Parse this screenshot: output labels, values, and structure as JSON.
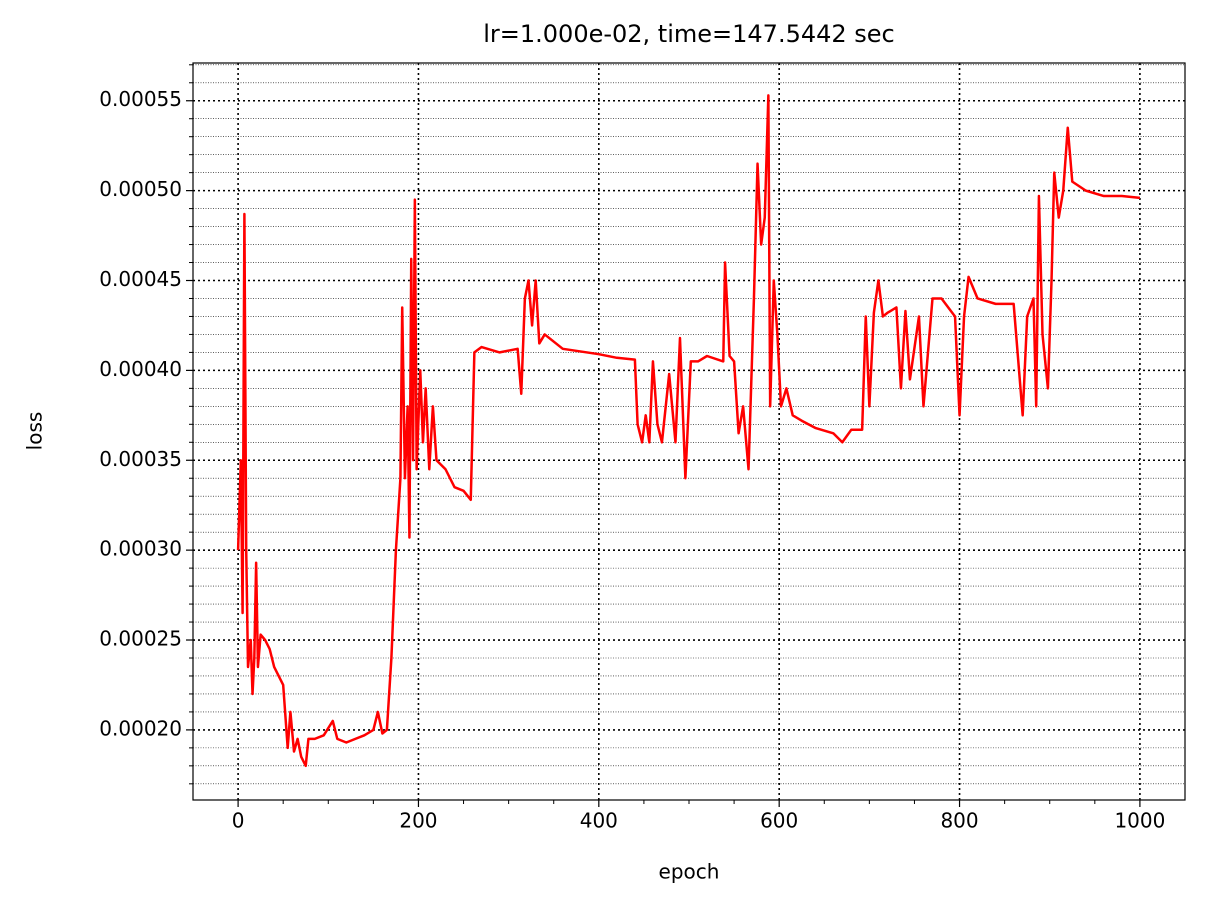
{
  "chart_data": {
    "type": "line",
    "title": "lr=1.000e-02, time=147.5442 sec",
    "x_label": "epoch",
    "y_label": "loss",
    "xlim": [
      -50,
      1050
    ],
    "ylim": [
      0.000161,
      0.000571
    ],
    "xticks": [
      0,
      200,
      400,
      600,
      800,
      1000
    ],
    "xticks_minor": [
      50,
      100,
      150,
      250,
      300,
      350,
      450,
      500,
      550,
      650,
      700,
      750,
      850,
      900,
      950
    ],
    "yticks": [
      {
        "value": 0.0002,
        "label": "0.00020"
      },
      {
        "value": 0.00025,
        "label": "0.00025"
      },
      {
        "value": 0.0003,
        "label": "0.00030"
      },
      {
        "value": 0.00035,
        "label": "0.00035"
      },
      {
        "value": 0.0004,
        "label": "0.00040"
      },
      {
        "value": 0.00045,
        "label": "0.00045"
      },
      {
        "value": 0.0005,
        "label": "0.00050"
      },
      {
        "value": 0.00055,
        "label": "0.00055"
      }
    ],
    "yticks_minor": [
      0.00017,
      0.00018,
      0.00019,
      0.00021,
      0.00022,
      0.00023,
      0.00024,
      0.00026,
      0.00027,
      0.00028,
      0.00029,
      0.00031,
      0.00032,
      0.00033,
      0.00034,
      0.00036,
      0.00037,
      0.00038,
      0.00039,
      0.00041,
      0.00042,
      0.00043,
      0.00044,
      0.00046,
      0.00047,
      0.00048,
      0.00049,
      0.00051,
      0.00052,
      0.00053,
      0.00054,
      0.00056,
      0.00057
    ],
    "grid": true,
    "minor_grid": true,
    "color": "#ff0000",
    "x": [
      0,
      3,
      5,
      7,
      9,
      11,
      14,
      16,
      18,
      20,
      22,
      25,
      30,
      35,
      40,
      45,
      50,
      55,
      58,
      62,
      66,
      70,
      75,
      78,
      85,
      95,
      105,
      110,
      120,
      130,
      140,
      150,
      155,
      160,
      165,
      170,
      175,
      180,
      182,
      185,
      188,
      190,
      192,
      194,
      196,
      198,
      202,
      205,
      208,
      212,
      216,
      220,
      230,
      240,
      250,
      258,
      262,
      270,
      290,
      310,
      314,
      318,
      322,
      326,
      330,
      334,
      340,
      360,
      400,
      420,
      440,
      443,
      448,
      452,
      456,
      460,
      465,
      470,
      478,
      485,
      490,
      496,
      502,
      510,
      520,
      538,
      540,
      545,
      550,
      555,
      560,
      566,
      572,
      576,
      580,
      584,
      588,
      590,
      594,
      598,
      602,
      608,
      615,
      625,
      640,
      660,
      670,
      680,
      692,
      696,
      700,
      705,
      710,
      715,
      720,
      730,
      735,
      740,
      745,
      755,
      760,
      770,
      780,
      795,
      800,
      805,
      810,
      820,
      840,
      860,
      870,
      875,
      882,
      885,
      888,
      892,
      898,
      902,
      905,
      910,
      915,
      920,
      925,
      940,
      960,
      980,
      1000
    ],
    "values": [
      0.0003,
      0.00035,
      0.000265,
      0.000487,
      0.0003,
      0.000235,
      0.00025,
      0.00022,
      0.00024,
      0.000293,
      0.000235,
      0.000253,
      0.00025,
      0.000245,
      0.000235,
      0.00023,
      0.000225,
      0.00019,
      0.00021,
      0.000188,
      0.000195,
      0.000185,
      0.00018,
      0.000195,
      0.000195,
      0.000197,
      0.000205,
      0.000195,
      0.000193,
      0.000195,
      0.000197,
      0.0002,
      0.00021,
      0.000198,
      0.0002,
      0.00024,
      0.0003,
      0.00034,
      0.000435,
      0.00034,
      0.00038,
      0.000307,
      0.000462,
      0.00035,
      0.000495,
      0.000345,
      0.0004,
      0.00036,
      0.00039,
      0.000345,
      0.00038,
      0.00035,
      0.000345,
      0.000335,
      0.000333,
      0.000328,
      0.00041,
      0.000413,
      0.00041,
      0.000412,
      0.000387,
      0.00044,
      0.00045,
      0.000425,
      0.00045,
      0.000415,
      0.00042,
      0.000412,
      0.000409,
      0.000407,
      0.000406,
      0.00037,
      0.00036,
      0.000375,
      0.00036,
      0.000405,
      0.00037,
      0.00036,
      0.000398,
      0.00036,
      0.000418,
      0.00034,
      0.000405,
      0.000405,
      0.000408,
      0.000405,
      0.00046,
      0.000408,
      0.000405,
      0.000365,
      0.00038,
      0.000345,
      0.00044,
      0.000515,
      0.00047,
      0.000485,
      0.000553,
      0.00038,
      0.00045,
      0.00042,
      0.00038,
      0.00039,
      0.000375,
      0.000372,
      0.000368,
      0.000365,
      0.00036,
      0.000367,
      0.000367,
      0.00043,
      0.00038,
      0.000432,
      0.00045,
      0.00043,
      0.000432,
      0.000435,
      0.00039,
      0.000433,
      0.000395,
      0.00043,
      0.00038,
      0.00044,
      0.00044,
      0.00043,
      0.000375,
      0.00043,
      0.000452,
      0.00044,
      0.000437,
      0.000437,
      0.000375,
      0.00043,
      0.00044,
      0.00038,
      0.000497,
      0.00042,
      0.00039,
      0.00045,
      0.00051,
      0.000485,
      0.0005,
      0.000535,
      0.000505,
      0.0005,
      0.000497,
      0.000497,
      0.000496
    ]
  }
}
